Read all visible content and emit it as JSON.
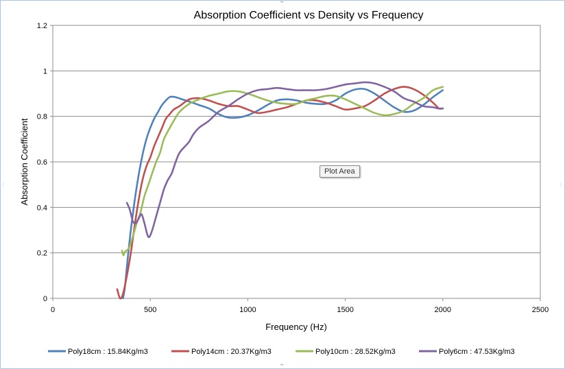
{
  "tooltip": {
    "label": "Plot Area"
  },
  "chart_data": {
    "type": "line",
    "title": "Absorption Coefficient vs Density vs Frequency",
    "xlabel": "Frequency (Hz)",
    "ylabel": "Absorption Coefficient",
    "xlim": [
      0,
      2500
    ],
    "ylim": [
      0,
      1.2
    ],
    "xticks": [
      0,
      500,
      1000,
      1500,
      2000,
      2500
    ],
    "yticks": [
      0,
      0.2,
      0.4,
      0.6,
      0.8,
      1,
      1.2
    ],
    "grid": "horizontal",
    "legend": "bottom",
    "series": [
      {
        "name": "Poly18cm : 15.84Kg/m3",
        "color": "#4f81bd",
        "points": [
          [
            360,
            0
          ],
          [
            370,
            0.05
          ],
          [
            380,
            0.14
          ],
          [
            400,
            0.3
          ],
          [
            420,
            0.43
          ],
          [
            440,
            0.54
          ],
          [
            460,
            0.63
          ],
          [
            480,
            0.7
          ],
          [
            500,
            0.75
          ],
          [
            520,
            0.79
          ],
          [
            540,
            0.82
          ],
          [
            560,
            0.85
          ],
          [
            580,
            0.87
          ],
          [
            600,
            0.885
          ],
          [
            620,
            0.886
          ],
          [
            640,
            0.882
          ],
          [
            660,
            0.876
          ],
          [
            700,
            0.865
          ],
          [
            750,
            0.85
          ],
          [
            800,
            0.835
          ],
          [
            850,
            0.81
          ],
          [
            900,
            0.795
          ],
          [
            950,
            0.795
          ],
          [
            1000,
            0.805
          ],
          [
            1050,
            0.825
          ],
          [
            1100,
            0.85
          ],
          [
            1150,
            0.87
          ],
          [
            1200,
            0.875
          ],
          [
            1250,
            0.87
          ],
          [
            1300,
            0.86
          ],
          [
            1350,
            0.855
          ],
          [
            1400,
            0.855
          ],
          [
            1450,
            0.87
          ],
          [
            1500,
            0.9
          ],
          [
            1550,
            0.918
          ],
          [
            1600,
            0.92
          ],
          [
            1650,
            0.9
          ],
          [
            1700,
            0.87
          ],
          [
            1750,
            0.84
          ],
          [
            1800,
            0.82
          ],
          [
            1850,
            0.825
          ],
          [
            1900,
            0.85
          ],
          [
            1950,
            0.885
          ],
          [
            2000,
            0.915
          ]
        ]
      },
      {
        "name": "Poly14cm : 20.37Kg/m3",
        "color": "#c0504d",
        "points": [
          [
            330,
            0.04
          ],
          [
            345,
            0
          ],
          [
            360,
            0.02
          ],
          [
            380,
            0.1
          ],
          [
            400,
            0.2
          ],
          [
            420,
            0.32
          ],
          [
            440,
            0.43
          ],
          [
            460,
            0.52
          ],
          [
            480,
            0.58
          ],
          [
            500,
            0.62
          ],
          [
            520,
            0.67
          ],
          [
            540,
            0.71
          ],
          [
            560,
            0.75
          ],
          [
            580,
            0.79
          ],
          [
            600,
            0.81
          ],
          [
            620,
            0.83
          ],
          [
            650,
            0.845
          ],
          [
            700,
            0.875
          ],
          [
            750,
            0.88
          ],
          [
            800,
            0.87
          ],
          [
            850,
            0.855
          ],
          [
            900,
            0.845
          ],
          [
            950,
            0.845
          ],
          [
            1000,
            0.83
          ],
          [
            1050,
            0.815
          ],
          [
            1100,
            0.82
          ],
          [
            1150,
            0.83
          ],
          [
            1200,
            0.84
          ],
          [
            1250,
            0.855
          ],
          [
            1300,
            0.87
          ],
          [
            1350,
            0.87
          ],
          [
            1400,
            0.86
          ],
          [
            1450,
            0.845
          ],
          [
            1500,
            0.83
          ],
          [
            1550,
            0.835
          ],
          [
            1600,
            0.845
          ],
          [
            1650,
            0.87
          ],
          [
            1700,
            0.9
          ],
          [
            1750,
            0.92
          ],
          [
            1800,
            0.93
          ],
          [
            1850,
            0.92
          ],
          [
            1900,
            0.895
          ],
          [
            1950,
            0.86
          ],
          [
            1980,
            0.835
          ],
          [
            2000,
            0.835
          ]
        ]
      },
      {
        "name": "Poly10cm : 28.52Kg/m3",
        "color": "#9bbb59",
        "points": [
          [
            355,
            0.21
          ],
          [
            362,
            0.19
          ],
          [
            370,
            0.205
          ],
          [
            390,
            0.22
          ],
          [
            410,
            0.27
          ],
          [
            430,
            0.33
          ],
          [
            450,
            0.38
          ],
          [
            470,
            0.45
          ],
          [
            490,
            0.5
          ],
          [
            510,
            0.55
          ],
          [
            530,
            0.6
          ],
          [
            550,
            0.64
          ],
          [
            570,
            0.7
          ],
          [
            600,
            0.75
          ],
          [
            620,
            0.78
          ],
          [
            650,
            0.82
          ],
          [
            700,
            0.855
          ],
          [
            750,
            0.875
          ],
          [
            800,
            0.89
          ],
          [
            850,
            0.9
          ],
          [
            900,
            0.91
          ],
          [
            950,
            0.91
          ],
          [
            1000,
            0.9
          ],
          [
            1050,
            0.885
          ],
          [
            1100,
            0.87
          ],
          [
            1150,
            0.86
          ],
          [
            1200,
            0.855
          ],
          [
            1250,
            0.855
          ],
          [
            1300,
            0.87
          ],
          [
            1350,
            0.88
          ],
          [
            1400,
            0.89
          ],
          [
            1450,
            0.89
          ],
          [
            1500,
            0.875
          ],
          [
            1550,
            0.855
          ],
          [
            1600,
            0.835
          ],
          [
            1650,
            0.815
          ],
          [
            1700,
            0.805
          ],
          [
            1750,
            0.81
          ],
          [
            1800,
            0.825
          ],
          [
            1850,
            0.855
          ],
          [
            1900,
            0.88
          ],
          [
            1950,
            0.915
          ],
          [
            2000,
            0.93
          ]
        ]
      },
      {
        "name": "Poly6cm : 47.53Kg/m3",
        "color": "#8064a2",
        "points": [
          [
            380,
            0.42
          ],
          [
            395,
            0.39
          ],
          [
            410,
            0.34
          ],
          [
            425,
            0.33
          ],
          [
            440,
            0.35
          ],
          [
            455,
            0.37
          ],
          [
            470,
            0.33
          ],
          [
            485,
            0.28
          ],
          [
            495,
            0.27
          ],
          [
            510,
            0.3
          ],
          [
            530,
            0.36
          ],
          [
            550,
            0.42
          ],
          [
            570,
            0.48
          ],
          [
            590,
            0.52
          ],
          [
            610,
            0.55
          ],
          [
            630,
            0.6
          ],
          [
            650,
            0.64
          ],
          [
            680,
            0.67
          ],
          [
            700,
            0.69
          ],
          [
            720,
            0.72
          ],
          [
            750,
            0.75
          ],
          [
            800,
            0.78
          ],
          [
            850,
            0.82
          ],
          [
            900,
            0.845
          ],
          [
            950,
            0.875
          ],
          [
            1000,
            0.9
          ],
          [
            1050,
            0.915
          ],
          [
            1100,
            0.92
          ],
          [
            1150,
            0.925
          ],
          [
            1200,
            0.92
          ],
          [
            1250,
            0.915
          ],
          [
            1300,
            0.915
          ],
          [
            1350,
            0.915
          ],
          [
            1400,
            0.92
          ],
          [
            1450,
            0.93
          ],
          [
            1500,
            0.94
          ],
          [
            1550,
            0.945
          ],
          [
            1600,
            0.95
          ],
          [
            1650,
            0.945
          ],
          [
            1700,
            0.93
          ],
          [
            1750,
            0.91
          ],
          [
            1800,
            0.88
          ],
          [
            1850,
            0.865
          ],
          [
            1900,
            0.845
          ],
          [
            1950,
            0.84
          ],
          [
            1975,
            0.835
          ],
          [
            2000,
            0.835
          ]
        ]
      }
    ]
  }
}
